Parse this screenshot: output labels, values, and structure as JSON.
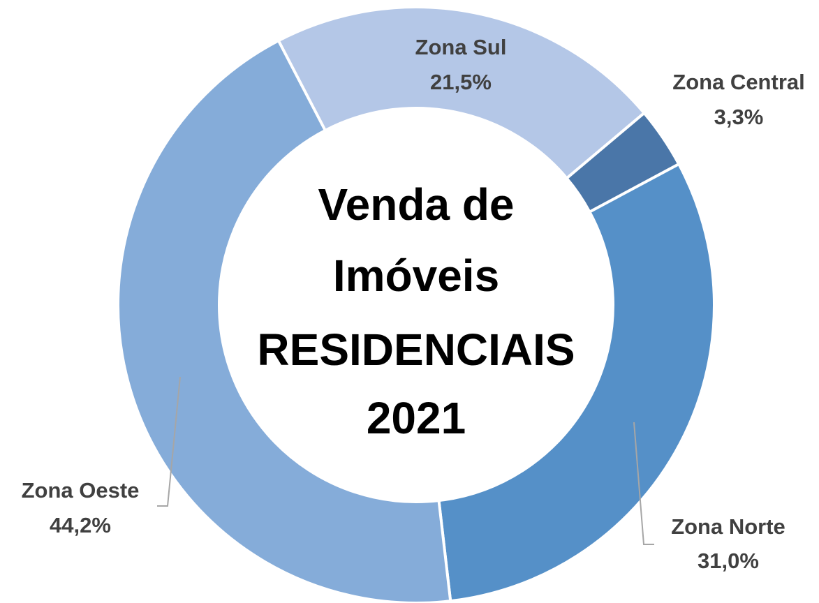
{
  "chart_data": {
    "type": "donut",
    "title": [
      "Venda de",
      "Imóveis",
      "RESIDENCIAIS",
      "2021"
    ],
    "categories": [
      "Zona Sul",
      "Zona Central",
      "Zona Norte",
      "Zona Oeste"
    ],
    "values": [
      21.5,
      3.3,
      31.0,
      44.2
    ],
    "value_labels": [
      "21,5%",
      "3,3%",
      "31,0%",
      "44,2%"
    ],
    "colors": [
      "#b4c7e7",
      "#4a76a8",
      "#5590c8",
      "#85acd9"
    ]
  }
}
